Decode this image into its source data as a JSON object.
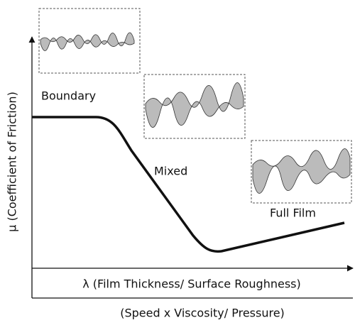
{
  "axes": {
    "y_label": "μ (Coefficient of Friction)",
    "x_label": "λ (Film Thickness/ Surface Roughness)",
    "x_sublabel": "(Speed x Viscosity/ Pressure)"
  },
  "regions": [
    {
      "label": "Boundary"
    },
    {
      "label": "Mixed"
    },
    {
      "label": "Full Film"
    }
  ]
}
